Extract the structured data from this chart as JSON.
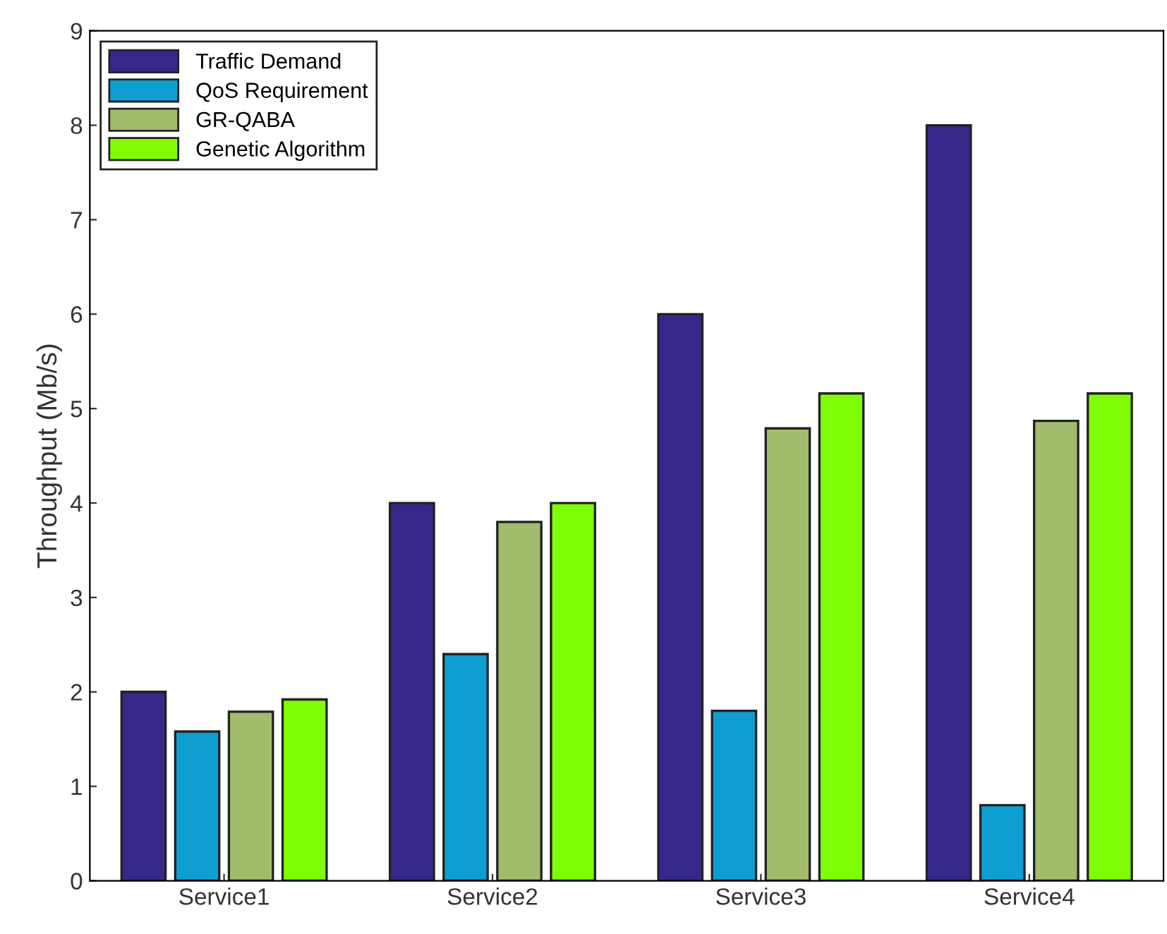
{
  "chart_data": {
    "type": "bar",
    "ylabel": "Throughput (Mb/s)",
    "categories": [
      "Service1",
      "Service2",
      "Service3",
      "Service4"
    ],
    "series": [
      {
        "name": "Traffic Demand",
        "color": "#35288a",
        "values": [
          2.0,
          4.0,
          6.0,
          8.0
        ]
      },
      {
        "name": "QoS Requirement",
        "color": "#0f9ed2",
        "values": [
          1.58,
          2.4,
          1.8,
          0.8
        ]
      },
      {
        "name": "GR-QABA",
        "color": "#a3bb6c",
        "values": [
          1.79,
          3.8,
          4.79,
          4.87
        ]
      },
      {
        "name": "Genetic Algorithm",
        "color": "#80fc05",
        "values": [
          1.92,
          4.0,
          5.16,
          5.16
        ]
      }
    ],
    "ylim": [
      0,
      9
    ],
    "yticks": [
      0,
      1,
      2,
      3,
      4,
      5,
      6,
      7,
      8,
      9
    ],
    "grid": false,
    "legend": "top left"
  }
}
